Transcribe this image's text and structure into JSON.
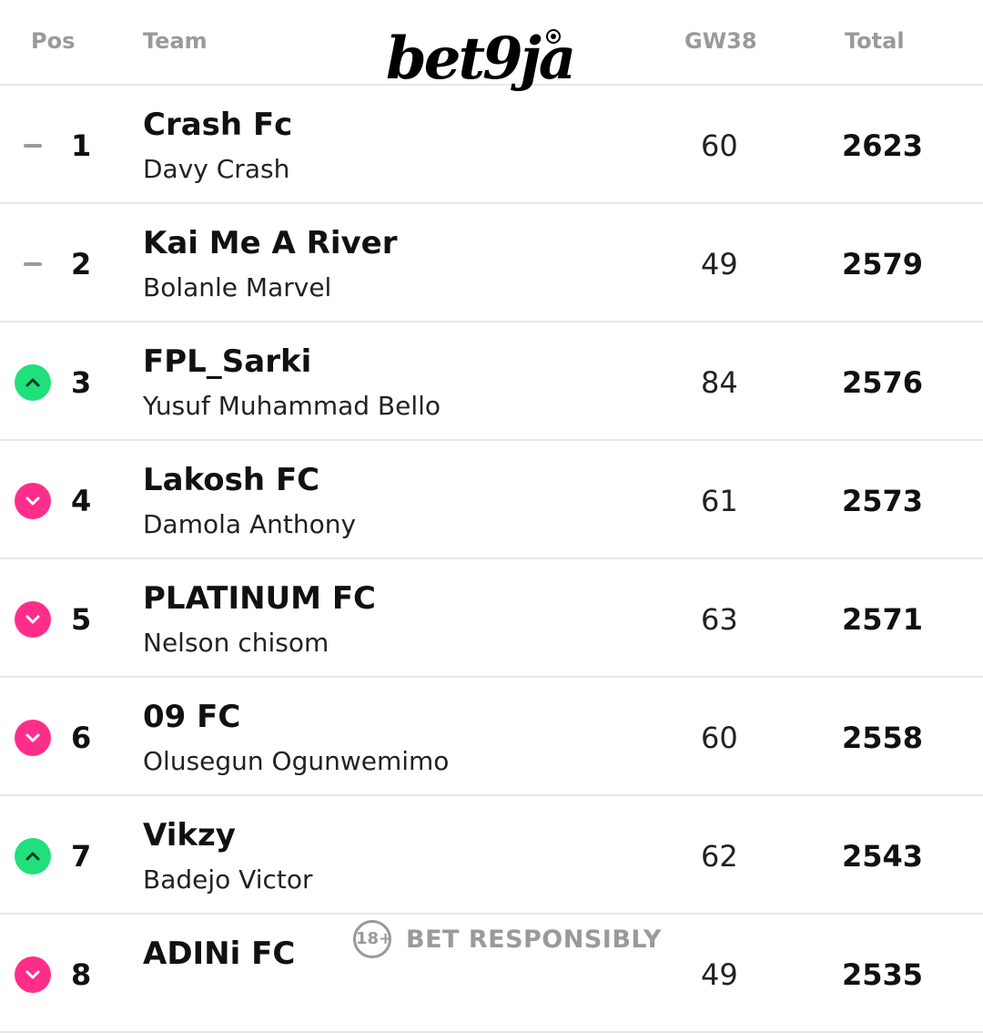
{
  "header": {
    "pos": "Pos",
    "team": "Team",
    "gameweek": "GW38",
    "total": "Total"
  },
  "logo": {
    "text": "bet9ja"
  },
  "rows": [
    {
      "movement": "same",
      "movement_icon": "dash-icon",
      "pos": "1",
      "team": "Crash Fc",
      "manager": "Davy Crash",
      "gw": "60",
      "total": "2623"
    },
    {
      "movement": "same",
      "movement_icon": "dash-icon",
      "pos": "2",
      "team": "Kai Me A River",
      "manager": "Bolanle Marvel",
      "gw": "49",
      "total": "2579"
    },
    {
      "movement": "up",
      "movement_icon": "chevron-up-icon",
      "pos": "3",
      "team": "FPL_Sarki",
      "manager": "Yusuf Muhammad Bello",
      "gw": "84",
      "total": "2576"
    },
    {
      "movement": "down",
      "movement_icon": "chevron-down-icon",
      "pos": "4",
      "team": "Lakosh FC",
      "manager": "Damola Anthony",
      "gw": "61",
      "total": "2573"
    },
    {
      "movement": "down",
      "movement_icon": "chevron-down-icon",
      "pos": "5",
      "team": "PLATINUM FC",
      "manager": "Nelson chisom",
      "gw": "63",
      "total": "2571"
    },
    {
      "movement": "down",
      "movement_icon": "chevron-down-icon",
      "pos": "6",
      "team": "09 FC",
      "manager": "Olusegun Ogunwemimo",
      "gw": "60",
      "total": "2558"
    },
    {
      "movement": "up",
      "movement_icon": "chevron-up-icon",
      "pos": "7",
      "team": "Vikzy",
      "manager": "Badejo Victor",
      "gw": "62",
      "total": "2543"
    },
    {
      "movement": "down",
      "movement_icon": "chevron-down-icon",
      "pos": "8",
      "team": "ADINi FC",
      "manager": "",
      "gw": "49",
      "total": "2535"
    }
  ],
  "footer": {
    "age_badge": "18+",
    "message": "BET RESPONSIBLY"
  },
  "colors": {
    "up": "#1fe07a",
    "down": "#ff2e8a",
    "same": "#9a9a9a",
    "header_text": "#9a9a9a"
  }
}
